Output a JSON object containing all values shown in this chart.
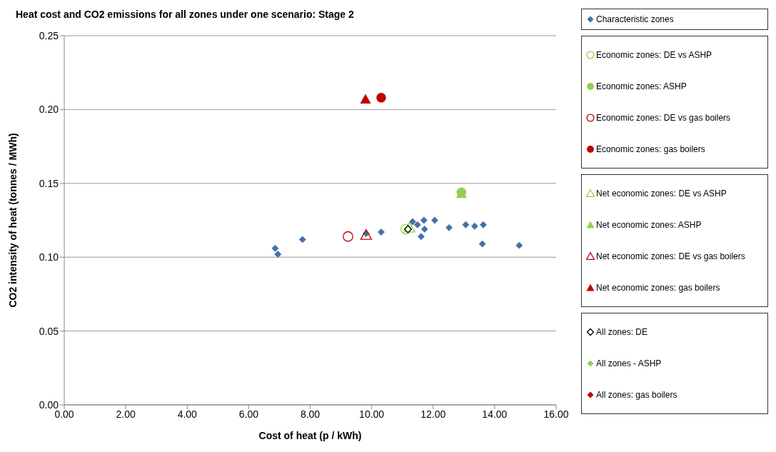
{
  "chart_data": {
    "type": "scatter",
    "title": "Heat cost and CO2 emissions for all zones under one scenario:  Stage 2",
    "xlabel": "Cost of heat (p / kWh)",
    "ylabel": "CO2 intensity of heat (tonnes / MWh)",
    "xlim": [
      0,
      16
    ],
    "xticks": [
      {
        "value": 0,
        "label": "0.00"
      },
      {
        "value": 2,
        "label": "2.00"
      },
      {
        "value": 4,
        "label": "4.00"
      },
      {
        "value": 6,
        "label": "6.00"
      },
      {
        "value": 8,
        "label": "8.00"
      },
      {
        "value": 10,
        "label": "10.00"
      },
      {
        "value": 12,
        "label": "12.00"
      },
      {
        "value": 14,
        "label": "14.00"
      },
      {
        "value": 16,
        "label": "16.00"
      }
    ],
    "ylim": [
      0,
      0.25
    ],
    "yticks": [
      {
        "value": 0,
        "label": "0.00"
      },
      {
        "value": 0.05,
        "label": "0.05"
      },
      {
        "value": 0.1,
        "label": "0.10"
      },
      {
        "value": 0.15,
        "label": "0.15"
      },
      {
        "value": 0.2,
        "label": "0.20"
      },
      {
        "value": 0.25,
        "label": "0.25"
      }
    ],
    "grid": "y",
    "legend": "right",
    "series": [
      {
        "name": "Characteristic zones",
        "color": "#4472a8",
        "marker": "diamond",
        "x": [
          6.86,
          6.95,
          7.75,
          9.82,
          10.31,
          11.33,
          11.49,
          11.7,
          12.05,
          11.72,
          11.61,
          12.52,
          13.06,
          13.35,
          13.63,
          13.6,
          14.8
        ],
        "values": [
          0.106,
          0.102,
          0.112,
          0.116,
          0.117,
          0.124,
          0.122,
          0.125,
          0.125,
          0.119,
          0.114,
          0.12,
          0.122,
          0.121,
          0.122,
          0.109,
          0.108
        ]
      },
      {
        "name": "Economic zones: DE vs ASHP",
        "color": "#92d050",
        "marker": "circle",
        "x": [
          11.11
        ],
        "values": [
          0.119
        ]
      },
      {
        "name": "Economic zones: ASHP",
        "color": "#92d050",
        "marker": "circle",
        "x": [
          12.92
        ],
        "values": [
          0.144
        ]
      },
      {
        "name": "Economic zones: DE vs gas boilers",
        "color": "#c00000",
        "marker": "circle",
        "x": [
          9.23
        ],
        "values": [
          0.114
        ]
      },
      {
        "name": "Economic zones: gas boilers",
        "color": "#c00000",
        "marker": "circle",
        "x": [
          10.31
        ],
        "values": [
          0.208
        ]
      },
      {
        "name": "Net economic zones: DE vs ASHP",
        "color": "#92d050",
        "marker": "triangle",
        "x": [
          11.23
        ],
        "values": [
          0.12
        ]
      },
      {
        "name": "Net economic zones: ASHP",
        "color": "#92d050",
        "marker": "triangle",
        "x": [
          12.92
        ],
        "values": [
          0.143
        ]
      },
      {
        "name": "Net economic zones: DE vs gas boilers",
        "color": "#c00000",
        "marker": "triangle",
        "x": [
          9.82
        ],
        "values": [
          0.115
        ]
      },
      {
        "name": "Net economic zones: gas boilers",
        "color": "#c00000",
        "marker": "triangle",
        "x": [
          9.8
        ],
        "values": [
          0.207
        ]
      },
      {
        "name": "All zones: DE",
        "color": "#000000",
        "marker": "diamond",
        "x": [
          11.18
        ],
        "values": [
          0.119
        ]
      },
      {
        "name": "All zones - ASHP",
        "color": "#92d050",
        "marker": "diamond"
      },
      {
        "name": "All zones: gas boilers",
        "color": "#c00000",
        "marker": "diamond"
      }
    ]
  }
}
